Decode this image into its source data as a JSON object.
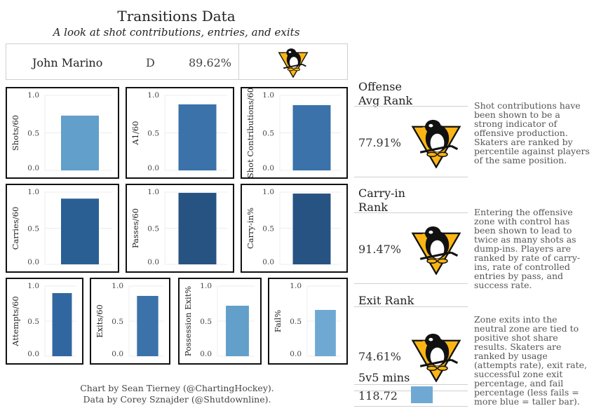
{
  "header": {
    "title": "Transitions Data",
    "subtitle": "A look at shot contributions, entries, and exits",
    "player_name": "John Marino",
    "position": "D",
    "overall_pct": "89.62%"
  },
  "chart_data": [
    {
      "type": "bar",
      "ylabel": "Shots/60",
      "ylim": [
        0,
        1
      ],
      "yticks": [
        "0.0",
        "0.5",
        "1.0"
      ],
      "values": [
        0.73
      ],
      "color": "#629fca"
    },
    {
      "type": "bar",
      "ylabel": "A1/60",
      "ylim": [
        0,
        1
      ],
      "yticks": [
        "0.0",
        "0.5",
        "1.0"
      ],
      "values": [
        0.88
      ],
      "color": "#3a72a9"
    },
    {
      "type": "bar",
      "ylabel": "Shot Contributions/60",
      "ylim": [
        0,
        1
      ],
      "yticks": [
        "0.0",
        "0.5",
        "1.0"
      ],
      "values": [
        0.87
      ],
      "color": "#3a72a9"
    },
    {
      "type": "bar",
      "ylabel": "Carries/60",
      "ylim": [
        0,
        1
      ],
      "yticks": [
        "0.0",
        "0.5",
        "1.0"
      ],
      "values": [
        0.91
      ],
      "color": "#2a5f94"
    },
    {
      "type": "bar",
      "ylabel": "Passes/60",
      "ylim": [
        0,
        1
      ],
      "yticks": [
        "0.0",
        "0.5",
        "1.0"
      ],
      "values": [
        0.99
      ],
      "color": "#275383"
    },
    {
      "type": "bar",
      "ylabel": "Carry-in%",
      "ylim": [
        0,
        1
      ],
      "yticks": [
        "0.0",
        "0.5",
        "1.0"
      ],
      "values": [
        0.98
      ],
      "color": "#275383"
    },
    {
      "type": "bar",
      "ylabel": "Attempts/60",
      "ylim": [
        0,
        1
      ],
      "yticks": [
        "0.0",
        "0.5",
        "1.0"
      ],
      "values": [
        0.9
      ],
      "color": "#3167a0"
    },
    {
      "type": "bar",
      "ylabel": "Exits/60",
      "ylim": [
        0,
        1
      ],
      "yticks": [
        "0.0",
        "0.5",
        "1.0"
      ],
      "values": [
        0.86
      ],
      "color": "#3a72a9"
    },
    {
      "type": "bar",
      "ylabel": "Possession Exit%",
      "ylim": [
        0,
        1
      ],
      "yticks": [
        "0.0",
        "0.5",
        "1.0"
      ],
      "values": [
        0.72
      ],
      "color": "#629fca"
    },
    {
      "type": "bar",
      "ylabel": "Fail%",
      "ylim": [
        0,
        1
      ],
      "yticks": [
        "0.0",
        "0.5",
        "1.0"
      ],
      "values": [
        0.66
      ],
      "color": "#6fa9d3"
    }
  ],
  "ranks": [
    {
      "title": "Offense\nAvg Rank",
      "value": "77.91%",
      "description": "Shot contributions have been shown to be a strong indicator of offensive production. Skaters are ranked by percentile against players of the same position."
    },
    {
      "title": "Carry-in\nRank",
      "value": "91.47%",
      "description": "Entering the offensive zone with control has been shown to lead to twice as many shots as dump-ins. Players are ranked by rate of carry-ins, rate of controlled entries by pass, and success rate."
    },
    {
      "title": "Exit Rank",
      "value": "74.61%",
      "description": "Zone exits into the neutral zone are tied to positive shot share results. Skaters are ranked by usage (attempts rate), exit rate, successful zone exit percentage, and fail percentage (less fails = more blue = taller bar)."
    }
  ],
  "mins": {
    "label": "5v5 mins",
    "value": "118.72",
    "bar_color": "#6fa9d3"
  },
  "credits": {
    "line1": "Chart by Sean Tierney (@ChartingHockey).",
    "line2": "Data by Corey Sznajder (@Shutdownline)."
  },
  "logo": {
    "icon": "penguin-logo-icon",
    "gold": "#fcb514",
    "black": "#111111"
  }
}
